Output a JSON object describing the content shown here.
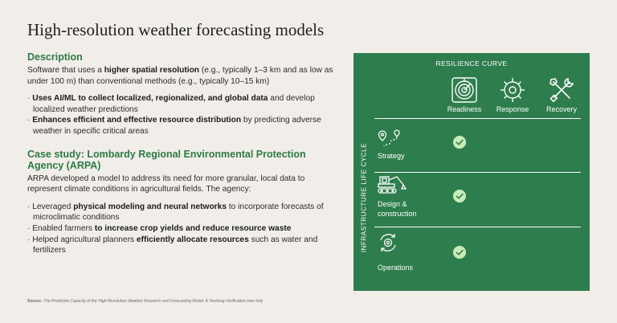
{
  "title": "High-resolution weather forecasting models",
  "description": {
    "heading": "Description",
    "para": [
      {
        "t": "Software that uses a "
      },
      {
        "t": "higher spatial resolution",
        "b": true
      },
      {
        "t": " (e.g., typically 1–3 km and as low as under 100 m) than conventional methods (e.g., typically 10–15 km)"
      }
    ],
    "bullets": [
      [
        {
          "t": "· "
        },
        {
          "t": "Uses AI/ML to collect localized, regionalized, and global data",
          "b": true
        },
        {
          "t": " and develop localized weather predictions"
        }
      ],
      [
        {
          "t": "· "
        },
        {
          "t": "Enhances efficient and effective resource distribution",
          "b": true
        },
        {
          "t": " by predicting adverse weather in specific critical areas"
        }
      ]
    ]
  },
  "case_study": {
    "heading": "Case study: Lombardy Regional Environmental Protection Agency (ARPA)",
    "para": [
      {
        "t": "ARPA developed a model to address its need for more granular, local data to represent climate conditions in agricultural fields. The agency:"
      }
    ],
    "bullets": [
      [
        {
          "t": "· Leveraged "
        },
        {
          "t": "physical modeling and neural networks",
          "b": true
        },
        {
          "t": " to incorporate forecasts of microclimatic conditions"
        }
      ],
      [
        {
          "t": "· Enabled farmers "
        },
        {
          "t": "to increase crop yields and reduce resource waste",
          "b": true
        }
      ],
      [
        {
          "t": "· Helped agricultural planners "
        },
        {
          "t": "efficiently allocate resources",
          "b": true
        },
        {
          "t": " such as water and fertilizers"
        }
      ]
    ]
  },
  "source": {
    "label": "Source:",
    "text": "The Predictive Capacity of the High-Resolution Weather Research and Forecasting Model: A Yearlong Verification over Italy"
  },
  "panel": {
    "bg": "#2e7d4c",
    "check_color": "#c9ecb7",
    "curve_title": "RESILIENCE CURVE",
    "lifecycle_title": "INFRASTRUCTURE LIFE CYCLE",
    "columns": [
      {
        "label": "Readiness",
        "icon": "radar-icon"
      },
      {
        "label": "Response",
        "icon": "gear-icon"
      },
      {
        "label": "Recovery",
        "icon": "tools-icon"
      }
    ],
    "rows": [
      {
        "label": "Strategy",
        "icon": "route-pin-icon",
        "checked_column": "Readiness"
      },
      {
        "label": "Design & construction",
        "icon": "excavator-icon",
        "checked_column": "Readiness"
      },
      {
        "label": "Operations",
        "icon": "cycle-gear-icon",
        "checked_column": "Readiness"
      }
    ]
  }
}
